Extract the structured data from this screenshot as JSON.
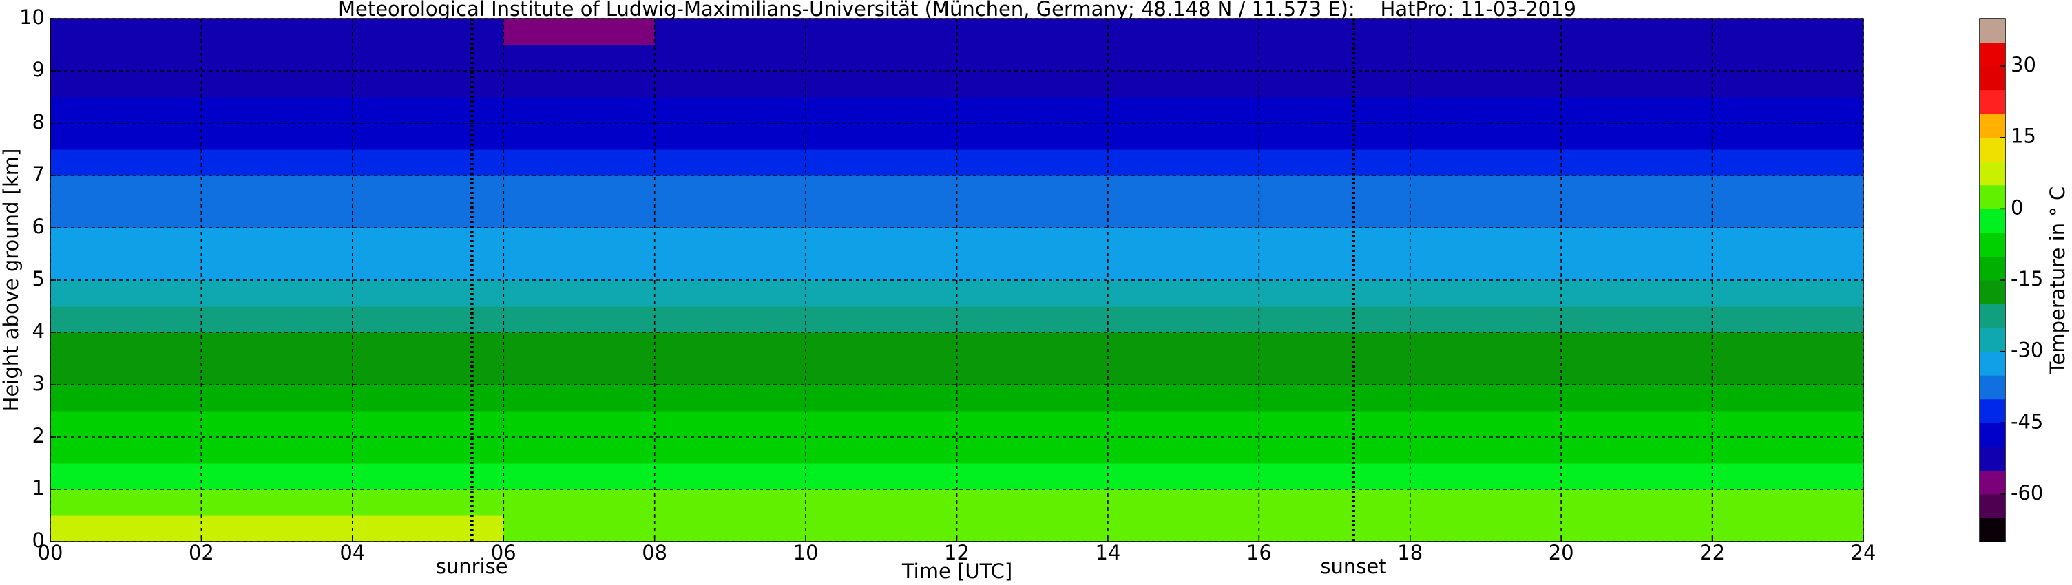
{
  "chart_data": {
    "type": "heatmap",
    "title": "Meteorological Institute of Ludwig-Maximilians-Universität (München, Germany; 48.148 N / 11.573 E):    HatPro: 11-03-2019",
    "xlabel": "Time [UTC]",
    "ylabel": "Height above ground [km]",
    "xlim": [
      0,
      24
    ],
    "ylim": [
      0,
      10
    ],
    "xticks": [
      {
        "value": 0,
        "label": "00"
      },
      {
        "value": 2,
        "label": "02"
      },
      {
        "value": 4,
        "label": "04"
      },
      {
        "value": 6,
        "label": "06"
      },
      {
        "value": 8,
        "label": "08"
      },
      {
        "value": 10,
        "label": "10"
      },
      {
        "value": 12,
        "label": "12"
      },
      {
        "value": 14,
        "label": "14"
      },
      {
        "value": 16,
        "label": "16"
      },
      {
        "value": 18,
        "label": "18"
      },
      {
        "value": 20,
        "label": "20"
      },
      {
        "value": 22,
        "label": "22"
      },
      {
        "value": 24,
        "label": "24"
      }
    ],
    "yticks": [
      0,
      1,
      2,
      3,
      4,
      5,
      6,
      7,
      8,
      9,
      10
    ],
    "grid": true,
    "xbins": [
      0,
      2,
      4,
      6,
      8,
      10,
      12,
      14,
      16,
      18,
      20,
      22,
      24
    ],
    "ybins": [
      0,
      0.5,
      1,
      1.5,
      2,
      2.5,
      3,
      3.5,
      4,
      4.5,
      5,
      5.5,
      6,
      6.5,
      7,
      7.5,
      8,
      8.5,
      9,
      9.5,
      10
    ],
    "values": [
      [
        6,
        6,
        6,
        5,
        4,
        4,
        4,
        4,
        4,
        4,
        5,
        5
      ],
      [
        1,
        1,
        1,
        1,
        0,
        0,
        0,
        0,
        0,
        0,
        1,
        1
      ],
      [
        -3,
        -3,
        -3,
        -3,
        -3,
        -3,
        -3,
        -3,
        -3,
        -3,
        -3,
        -3
      ],
      [
        -6,
        -6,
        -6,
        -6,
        -6,
        -6,
        -6,
        -6,
        -6,
        -6,
        -6,
        -6
      ],
      [
        -9,
        -9,
        -9,
        -9,
        -9,
        -9,
        -9,
        -9,
        -9,
        -9,
        -9,
        -9
      ],
      [
        -12,
        -12,
        -12,
        -12,
        -12,
        -12,
        -12,
        -12,
        -12,
        -12,
        -12,
        -12
      ],
      [
        -16,
        -16,
        -16,
        -16,
        -16,
        -16,
        -16,
        -16,
        -16,
        -16,
        -16,
        -16
      ],
      [
        -19,
        -19,
        -19,
        -17,
        -19,
        -19,
        -19,
        -19,
        -18,
        -19,
        -19,
        -19
      ],
      [
        -23,
        -23,
        -23,
        -21,
        -23,
        -23,
        -23,
        -23,
        -23,
        -23,
        -23,
        -23
      ],
      [
        -27,
        -27,
        -27,
        -27,
        -27,
        -27,
        -27,
        -27,
        -27,
        -27,
        -27,
        -27
      ],
      [
        -31,
        -31,
        -31,
        -31,
        -31,
        -31,
        -31,
        -31,
        -31,
        -31,
        -31,
        -31
      ],
      [
        -33,
        -33,
        -33,
        -33,
        -33,
        -33,
        -33,
        -33,
        -33,
        -33,
        -33,
        -33
      ],
      [
        -36,
        -36,
        -36,
        -36,
        -36,
        -36,
        -36,
        -36,
        -36,
        -36,
        -36,
        -36
      ],
      [
        -38,
        -38,
        -38,
        -38,
        -38,
        -38,
        -38,
        -38,
        -38,
        -38,
        -38,
        -38
      ],
      [
        -43,
        -43,
        -43,
        -41,
        -43,
        -43,
        -43,
        -43,
        -43,
        -43,
        -43,
        -43
      ],
      [
        -47,
        -47,
        -47,
        -47,
        -47,
        -47,
        -47,
        -47,
        -47,
        -47,
        -47,
        -47
      ],
      [
        -49,
        -49,
        -49,
        -49,
        -49,
        -49,
        -49,
        -49,
        -49,
        -49,
        -49,
        -49
      ],
      [
        -51,
        -51,
        -51,
        -51,
        -51,
        -51,
        -51,
        -51,
        -51,
        -51,
        -51,
        -51
      ],
      [
        -52,
        -52,
        -52,
        -52,
        -52,
        -52,
        -52,
        -52,
        -52,
        -52,
        -52,
        -52
      ],
      [
        -53,
        -53,
        -53,
        -56,
        -55,
        -53,
        -53,
        -53,
        -53,
        -53,
        -53,
        -53
      ]
    ],
    "clim": [
      -70,
      40
    ],
    "colormap": [
      "#0a0008",
      "#500050",
      "#7c007c",
      "#1000b0",
      "#0000c8",
      "#0028e8",
      "#1070e0",
      "#10a0e8",
      "#10a8b0",
      "#10a080",
      "#089808",
      "#00b000",
      "#00d000",
      "#00f020",
      "#60f000",
      "#c8f000",
      "#f0e000",
      "#ffb000",
      "#ff2020",
      "#e00000",
      "#e80000",
      "#c0a090"
    ],
    "colorbar_label": "Temperature in ° C",
    "colorbar_ticks": [
      -60,
      -45,
      -30,
      -15,
      0,
      15,
      30
    ],
    "annotations": [
      {
        "text": "sunrise",
        "x": 5.58
      },
      {
        "text": "sunset",
        "x": 17.25
      }
    ]
  }
}
